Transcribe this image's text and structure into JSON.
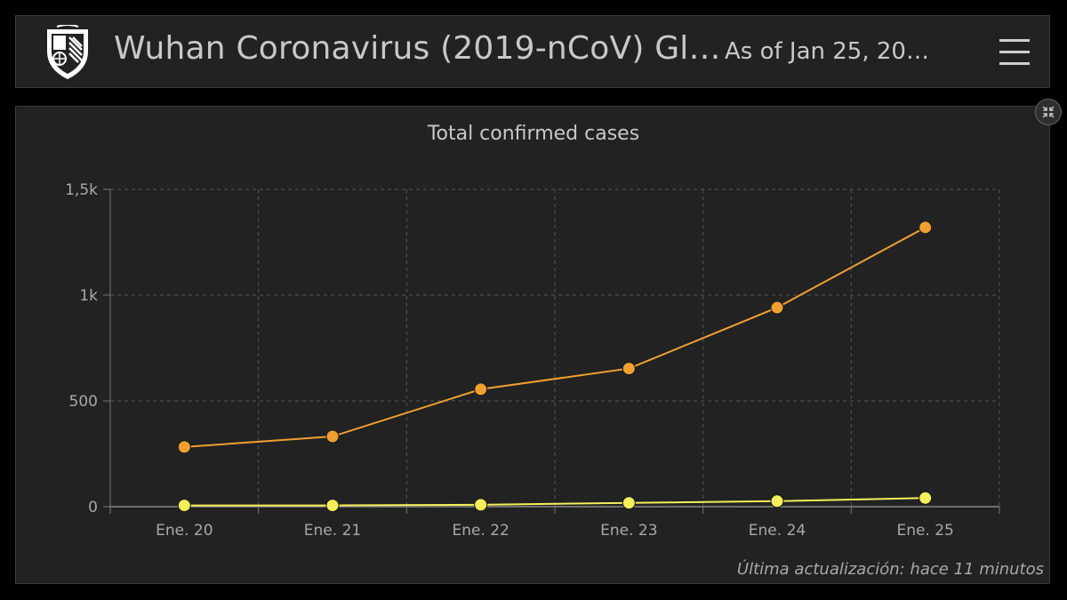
{
  "header": {
    "title": "Wuhan Coronavirus (2019-nCoV) Gl…",
    "as_of": "As of Jan 25, 20…",
    "logo_icon": "shield-logo-icon",
    "menu_icon": "hamburger-menu-icon"
  },
  "panel": {
    "collapse_icon": "collapse-arrows-icon"
  },
  "chart_data": {
    "type": "line",
    "title": "Total confirmed cases",
    "categories": [
      "Ene. 20",
      "Ene. 21",
      "Ene. 22",
      "Ene. 23",
      "Ene. 24",
      "Ene. 25"
    ],
    "series": [
      {
        "values": [
          282,
          332,
          555,
          653,
          941,
          1320
        ],
        "color": "#f0a030"
      },
      {
        "values": [
          6,
          6,
          9,
          18,
          26,
          41
        ],
        "color": "#f5f05a"
      }
    ],
    "ylim": [
      0,
      1500
    ],
    "yticks": [
      {
        "value": 0,
        "label": "0"
      },
      {
        "value": 500,
        "label": "500"
      },
      {
        "value": 1000,
        "label": "1k"
      },
      {
        "value": 1500,
        "label": "1,5k"
      }
    ],
    "grid": true,
    "xlabel": "",
    "ylabel": ""
  },
  "footer": {
    "last_update": "Última actualización: hace 11 minutos"
  }
}
